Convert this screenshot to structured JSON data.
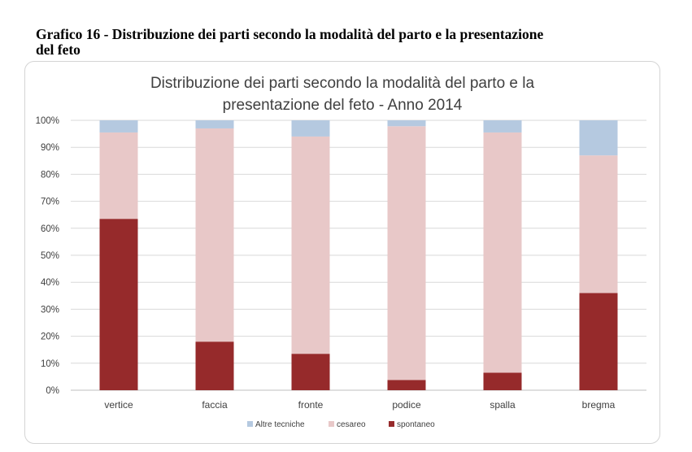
{
  "caption": {
    "line1": "Grafico 16 - Distribuzione dei parti secondo la modalità del parto e la presentazione",
    "line2": "del feto"
  },
  "chart_data": {
    "type": "bar",
    "stacked": true,
    "title_line1": "Distribuzione dei parti secondo la modalità del parto e la",
    "title_line2": "presentazione del feto - Anno 2014",
    "categories": [
      "vertice",
      "faccia",
      "fronte",
      "podice",
      "spalla",
      "bregma"
    ],
    "series": [
      {
        "name": "spontaneo",
        "color": "#962a2b",
        "values": [
          63.5,
          18,
          13.5,
          3.8,
          6.5,
          36
        ]
      },
      {
        "name": "cesareo",
        "color": "#e8c8c8",
        "values": [
          32,
          79,
          80.5,
          94,
          89,
          51
        ]
      },
      {
        "name": "Altre tecniche",
        "color": "#b5c9e0",
        "values": [
          4.5,
          3,
          6,
          2.2,
          4.5,
          13
        ]
      }
    ],
    "legend_order": [
      "Altre tecniche",
      "cesareo",
      "spontaneo"
    ],
    "ylim": [
      0,
      100
    ],
    "yticks": [
      "0%",
      "10%",
      "20%",
      "30%",
      "40%",
      "50%",
      "60%",
      "70%",
      "80%",
      "90%",
      "100%"
    ],
    "grid": true,
    "legend_position": "bottom"
  }
}
